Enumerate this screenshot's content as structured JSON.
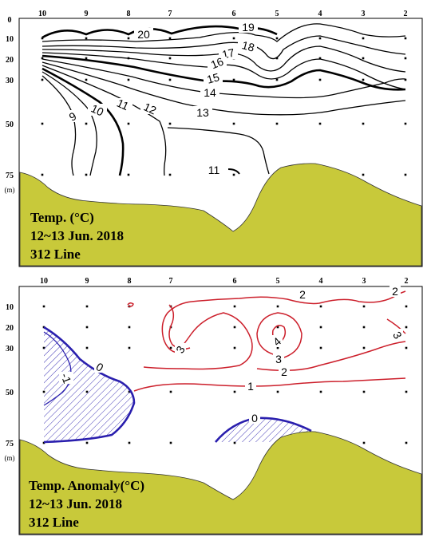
{
  "chart_data": [
    {
      "type": "contour",
      "title_lines": [
        "Temp. (°C)",
        "12~13 Jun. 2018",
        "312 Line"
      ],
      "stations": [
        "10",
        "9",
        "8",
        "7",
        "6",
        "5",
        "4",
        "3",
        "2"
      ],
      "depths": [
        "0",
        "10",
        "20",
        "30",
        "50",
        "75"
      ],
      "depth_unit": "(m)",
      "contour_levels": [
        "20",
        "19",
        "18",
        "17",
        "16",
        "15",
        "14",
        "13",
        "12",
        "11",
        "10",
        "9",
        "11"
      ],
      "colors": {
        "contour": "#000000",
        "bottom": "#c8c93a"
      }
    },
    {
      "type": "contour",
      "title_lines": [
        "Temp. Anomaly(°C)",
        "12~13 Jun. 2018",
        "312 Line"
      ],
      "stations": [
        "10",
        "9",
        "8",
        "7",
        "6",
        "5",
        "4",
        "3",
        "2"
      ],
      "depths": [
        "10",
        "20",
        "30",
        "50",
        "75"
      ],
      "depth_unit": "(m)",
      "contour_levels": [
        "2",
        "2",
        "3",
        "3",
        "4",
        "3",
        "2",
        "1",
        "0",
        "-1",
        "0"
      ],
      "colors": {
        "positive": "#cc1f2b",
        "negative": "#2a1fae",
        "bottom": "#c8c93a"
      }
    }
  ]
}
